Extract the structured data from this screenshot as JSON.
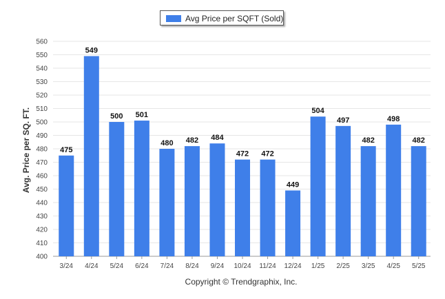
{
  "chart_data": {
    "type": "bar",
    "categories": [
      "3/24",
      "4/24",
      "5/24",
      "6/24",
      "7/24",
      "8/24",
      "9/24",
      "10/24",
      "11/24",
      "12/24",
      "1/25",
      "2/25",
      "3/25",
      "4/25",
      "5/25"
    ],
    "series": [
      {
        "name": "Avg Price per SQFT (Sold)",
        "values": [
          475,
          549,
          500,
          501,
          480,
          482,
          484,
          472,
          472,
          449,
          504,
          497,
          482,
          498,
          482
        ]
      }
    ],
    "ylabel": "Avg. Price per SQ. FT.",
    "ylim": [
      400,
      560
    ],
    "yticks": [
      400,
      410,
      420,
      430,
      440,
      450,
      460,
      470,
      480,
      490,
      500,
      510,
      520,
      530,
      540,
      550,
      560
    ],
    "grid": true,
    "legend_position": "top-center",
    "bar_color": "#3f7fe9"
  },
  "legend": {
    "label": "Avg Price per SQFT (Sold)"
  },
  "footer": {
    "copyright": "Copyright © Trendgraphix, Inc."
  }
}
